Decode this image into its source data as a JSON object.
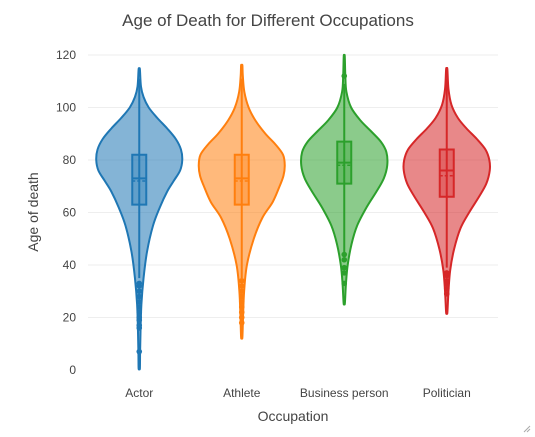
{
  "chart_data": {
    "type": "violin",
    "title": "Age of Death for Different Occupations",
    "xlabel": "Occupation",
    "ylabel": "Age of death",
    "ylim": [
      0,
      120
    ],
    "yticks": [
      0,
      20,
      40,
      60,
      80,
      100,
      120
    ],
    "grid": true,
    "legend": "none",
    "categories": [
      "Actor",
      "Athlete",
      "Business person",
      "Politician"
    ],
    "series": [
      {
        "category": "Actor",
        "color": "#1f77b4",
        "range": [
          0.7,
          114.5
        ],
        "box": {
          "q1": 63,
          "median": 73,
          "q3": 82,
          "mean": 72,
          "whisker_low": 35,
          "whisker_high": 111
        },
        "outliers": [
          7,
          16,
          17,
          19,
          20,
          22,
          24,
          26,
          28,
          30,
          32,
          33
        ],
        "density": [
          [
            0.7,
            0.015
          ],
          [
            7,
            0.02
          ],
          [
            15,
            0.03
          ],
          [
            25,
            0.05
          ],
          [
            35,
            0.1
          ],
          [
            45,
            0.18
          ],
          [
            55,
            0.32
          ],
          [
            62,
            0.48
          ],
          [
            68,
            0.65
          ],
          [
            72,
            0.8
          ],
          [
            76,
            0.95
          ],
          [
            80,
            1.0
          ],
          [
            84,
            0.97
          ],
          [
            88,
            0.85
          ],
          [
            92,
            0.65
          ],
          [
            96,
            0.42
          ],
          [
            100,
            0.22
          ],
          [
            104,
            0.1
          ],
          [
            108,
            0.04
          ],
          [
            114.5,
            0.015
          ]
        ]
      },
      {
        "category": "Athlete",
        "color": "#ff7f0e",
        "range": [
          12.5,
          116
        ],
        "box": {
          "q1": 63,
          "median": 73,
          "q3": 82,
          "mean": 72,
          "whisker_low": 35,
          "whisker_high": 111
        },
        "outliers": [
          18,
          20,
          22,
          24,
          26,
          28,
          30,
          32,
          34
        ],
        "density": [
          [
            12.5,
            0.015
          ],
          [
            20,
            0.03
          ],
          [
            30,
            0.055
          ],
          [
            40,
            0.12
          ],
          [
            50,
            0.28
          ],
          [
            58,
            0.48
          ],
          [
            64,
            0.72
          ],
          [
            70,
            0.88
          ],
          [
            74,
            0.97
          ],
          [
            78,
            1.0
          ],
          [
            82,
            0.96
          ],
          [
            86,
            0.78
          ],
          [
            90,
            0.55
          ],
          [
            95,
            0.32
          ],
          [
            100,
            0.16
          ],
          [
            106,
            0.06
          ],
          [
            112,
            0.025
          ],
          [
            116,
            0.015
          ]
        ]
      },
      {
        "category": "Business person",
        "color": "#2ca02c",
        "range": [
          25.5,
          119.5
        ],
        "box": {
          "q1": 71,
          "median": 79,
          "q3": 87,
          "mean": 78,
          "whisker_low": 44,
          "whisker_high": 109
        },
        "outliers": [
          33,
          37,
          39,
          42,
          44,
          112
        ],
        "density": [
          [
            25.5,
            0.015
          ],
          [
            33,
            0.04
          ],
          [
            40,
            0.08
          ],
          [
            48,
            0.17
          ],
          [
            55,
            0.3
          ],
          [
            62,
            0.52
          ],
          [
            68,
            0.75
          ],
          [
            73,
            0.92
          ],
          [
            78,
            1.0
          ],
          [
            83,
            0.98
          ],
          [
            87,
            0.85
          ],
          [
            91,
            0.62
          ],
          [
            95,
            0.38
          ],
          [
            100,
            0.16
          ],
          [
            106,
            0.05
          ],
          [
            112,
            0.025
          ],
          [
            119.5,
            0.012
          ]
        ]
      },
      {
        "category": "Politician",
        "color": "#d62728",
        "range": [
          22,
          114.5
        ],
        "box": {
          "q1": 66,
          "median": 76,
          "q3": 84,
          "mean": 74,
          "whisker_low": 39,
          "whisker_high": 111
        },
        "outliers": [
          29,
          31,
          33,
          34,
          36,
          37
        ],
        "density": [
          [
            22,
            0.015
          ],
          [
            30,
            0.04
          ],
          [
            38,
            0.08
          ],
          [
            46,
            0.17
          ],
          [
            54,
            0.32
          ],
          [
            60,
            0.52
          ],
          [
            66,
            0.75
          ],
          [
            71,
            0.92
          ],
          [
            76,
            1.0
          ],
          [
            80,
            0.99
          ],
          [
            84,
            0.9
          ],
          [
            88,
            0.7
          ],
          [
            92,
            0.46
          ],
          [
            96,
            0.26
          ],
          [
            101,
            0.11
          ],
          [
            107,
            0.04
          ],
          [
            114.5,
            0.015
          ]
        ]
      }
    ]
  }
}
